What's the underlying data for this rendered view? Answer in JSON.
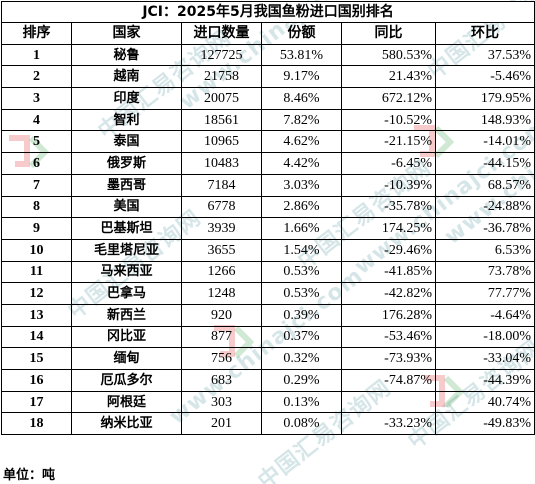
{
  "title": "JCI：2025年5月我国鱼粉进口国别排名",
  "headers": [
    "排序",
    "国家",
    "进口数量",
    "份额",
    "同比",
    "环比"
  ],
  "rows": [
    {
      "rank": "1",
      "country": "秘鲁",
      "qty": "127725",
      "share": "53.81%",
      "yoy": "580.53%",
      "mom": "37.53%"
    },
    {
      "rank": "2",
      "country": "越南",
      "qty": "21758",
      "share": "9.17%",
      "yoy": "21.43%",
      "mom": "-5.46%"
    },
    {
      "rank": "3",
      "country": "印度",
      "qty": "20075",
      "share": "8.46%",
      "yoy": "672.12%",
      "mom": "179.95%"
    },
    {
      "rank": "4",
      "country": "智利",
      "qty": "18561",
      "share": "7.82%",
      "yoy": "-10.52%",
      "mom": "148.93%"
    },
    {
      "rank": "5",
      "country": "泰国",
      "qty": "10965",
      "share": "4.62%",
      "yoy": "-21.15%",
      "mom": "-14.01%"
    },
    {
      "rank": "6",
      "country": "俄罗斯",
      "qty": "10483",
      "share": "4.42%",
      "yoy": "-6.45%",
      "mom": "-44.15%"
    },
    {
      "rank": "7",
      "country": "墨西哥",
      "qty": "7184",
      "share": "3.03%",
      "yoy": "-10.39%",
      "mom": "68.57%"
    },
    {
      "rank": "8",
      "country": "美国",
      "qty": "6778",
      "share": "2.86%",
      "yoy": "-35.78%",
      "mom": "-24.88%"
    },
    {
      "rank": "9",
      "country": "巴基斯坦",
      "qty": "3939",
      "share": "1.66%",
      "yoy": "174.25%",
      "mom": "-36.78%"
    },
    {
      "rank": "10",
      "country": "毛里塔尼亚",
      "qty": "3655",
      "share": "1.54%",
      "yoy": "-29.46%",
      "mom": "6.53%"
    },
    {
      "rank": "11",
      "country": "马来西亚",
      "qty": "1266",
      "share": "0.53%",
      "yoy": "-41.85%",
      "mom": "73.78%"
    },
    {
      "rank": "12",
      "country": "巴拿马",
      "qty": "1248",
      "share": "0.53%",
      "yoy": "-42.82%",
      "mom": "77.77%"
    },
    {
      "rank": "13",
      "country": "新西兰",
      "qty": "920",
      "share": "0.39%",
      "yoy": "176.28%",
      "mom": "-4.64%"
    },
    {
      "rank": "14",
      "country": "冈比亚",
      "qty": "877",
      "share": "0.37%",
      "yoy": "-53.46%",
      "mom": "-18.00%"
    },
    {
      "rank": "15",
      "country": "缅甸",
      "qty": "756",
      "share": "0.32%",
      "yoy": "-73.93%",
      "mom": "-33.04%"
    },
    {
      "rank": "16",
      "country": "厄瓜多尔",
      "qty": "683",
      "share": "0.29%",
      "yoy": "-74.87%",
      "mom": "-44.39%"
    },
    {
      "rank": "17",
      "country": "阿根廷",
      "qty": "303",
      "share": "0.13%",
      "yoy": "",
      "mom": "40.74%"
    },
    {
      "rank": "18",
      "country": "纳米比亚",
      "qty": "201",
      "share": "0.08%",
      "yoy": "-33.23%",
      "mom": "-49.83%"
    }
  ],
  "unit_label": "单位：吨",
  "watermark": {
    "text_cn": "中国汇易咨询网",
    "text_url": "www.chinajci.com"
  },
  "colors": {
    "border": "#000000",
    "watermark": "#468c96",
    "logo_red": "#e03030",
    "logo_green": "#2a9a3a"
  }
}
